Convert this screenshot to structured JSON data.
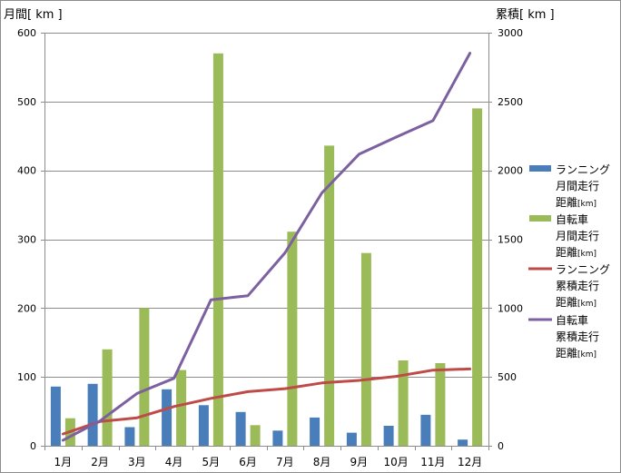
{
  "chart_data": {
    "type": "bar+line",
    "categories": [
      "1月",
      "2月",
      "3月",
      "4月",
      "5月",
      "6月",
      "7月",
      "8月",
      "9月",
      "10月",
      "11月",
      "12月"
    ],
    "y_left": {
      "label": "月間[ km ]",
      "min": 0,
      "max": 600,
      "ticks": [
        0,
        100,
        200,
        300,
        400,
        500,
        600
      ]
    },
    "y_right": {
      "label": "累積[ km ]",
      "min": 0,
      "max": 3000,
      "ticks": [
        0,
        500,
        1000,
        1500,
        2000,
        2500,
        3000
      ]
    },
    "grid": true,
    "legend_position": "right",
    "series": [
      {
        "name_lines": [
          "ランニング",
          "月間走行",
          "距離[km]"
        ],
        "type": "bar",
        "axis": "left",
        "color": "#4a7ebb",
        "values": [
          86,
          90,
          27,
          82,
          59,
          49,
          22,
          41,
          19,
          29,
          45,
          9
        ]
      },
      {
        "name_lines": [
          "自転車",
          "月間走行",
          "距離[km]"
        ],
        "type": "bar",
        "axis": "left",
        "color": "#9bbb59",
        "values": [
          40,
          140,
          200,
          110,
          570,
          30,
          311,
          436,
          280,
          124,
          120,
          490
        ]
      },
      {
        "name_lines": [
          "ランニング",
          "累積走行",
          "距離[km]"
        ],
        "type": "line",
        "axis": "right",
        "color": "#be4b48",
        "values": [
          86,
          176,
          203,
          285,
          344,
          393,
          415,
          456,
          475,
          504,
          549,
          558
        ]
      },
      {
        "name_lines": [
          "自転車",
          "累積走行",
          "距離[km]"
        ],
        "type": "line",
        "axis": "right",
        "color": "#7d60a0",
        "values": [
          40,
          180,
          380,
          490,
          1060,
          1090,
          1401,
          1837,
          2117,
          2241,
          2361,
          2851
        ]
      }
    ]
  }
}
